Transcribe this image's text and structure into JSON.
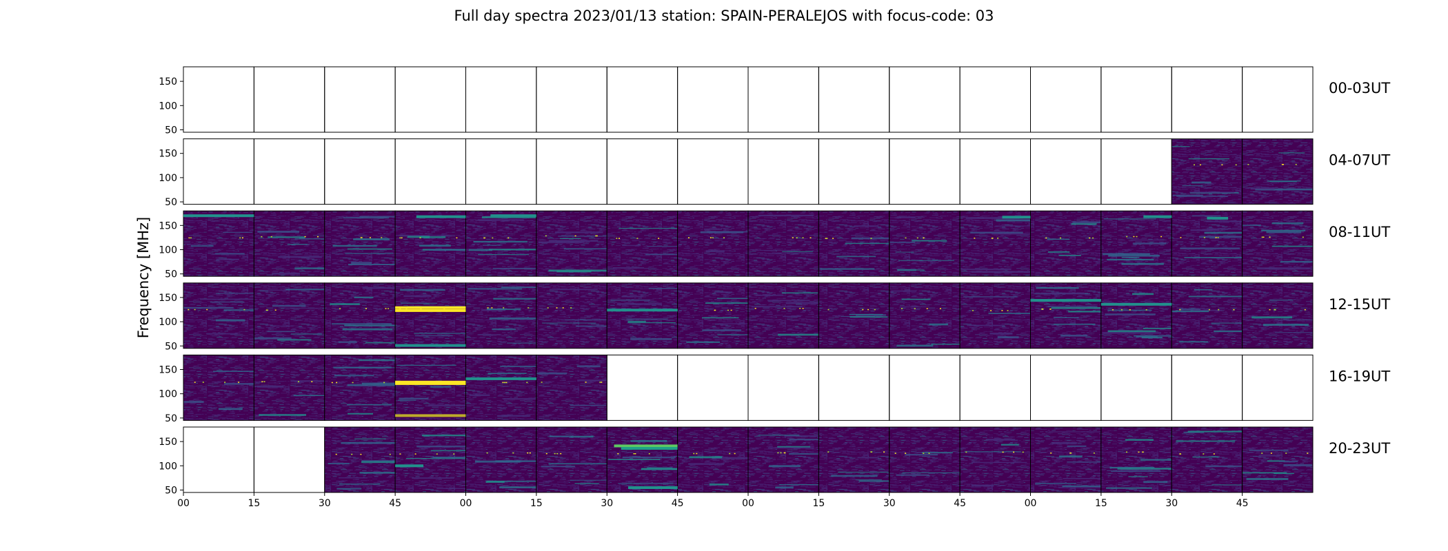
{
  "chart_data": {
    "type": "heatmap",
    "title": "Full day spectra 2023/01/13 station: SPAIN-PERALEJOS with focus-code: 03",
    "ylabel": "Frequency [MHz]",
    "xlabel": "",
    "ylim": [
      45,
      180
    ],
    "y_ticks": [
      "50",
      "100",
      "150"
    ],
    "y_tick_values": [
      50,
      100,
      150
    ],
    "x_tick_labels": [
      "00",
      "15",
      "30",
      "45",
      "00",
      "15",
      "30",
      "45",
      "00",
      "15",
      "30",
      "45",
      "00",
      "15",
      "30",
      "45"
    ],
    "rows": [
      {
        "label": "00-03UT",
        "has_data": [
          false,
          false,
          false,
          false,
          false,
          false,
          false,
          false,
          false,
          false,
          false,
          false,
          false,
          false,
          false,
          false
        ]
      },
      {
        "label": "04-07UT",
        "has_data": [
          false,
          false,
          false,
          false,
          false,
          false,
          false,
          false,
          false,
          false,
          false,
          false,
          false,
          false,
          true,
          true
        ]
      },
      {
        "label": "08-11UT",
        "has_data": [
          true,
          true,
          true,
          true,
          true,
          true,
          true,
          true,
          true,
          true,
          true,
          true,
          true,
          true,
          true,
          true
        ]
      },
      {
        "label": "12-15UT",
        "has_data": [
          true,
          true,
          true,
          true,
          true,
          true,
          true,
          true,
          true,
          true,
          true,
          true,
          true,
          true,
          true,
          true
        ]
      },
      {
        "label": "16-19UT",
        "has_data": [
          true,
          true,
          true,
          true,
          true,
          true,
          false,
          false,
          false,
          false,
          false,
          false,
          false,
          false,
          false,
          false
        ]
      },
      {
        "label": "20-23UT",
        "has_data": [
          false,
          false,
          true,
          true,
          true,
          true,
          true,
          true,
          true,
          true,
          true,
          true,
          true,
          true,
          true,
          true
        ]
      }
    ],
    "colormap": [
      "#440154",
      "#3b528b",
      "#21918c",
      "#5ec962",
      "#fde725"
    ],
    "grid": false
  }
}
